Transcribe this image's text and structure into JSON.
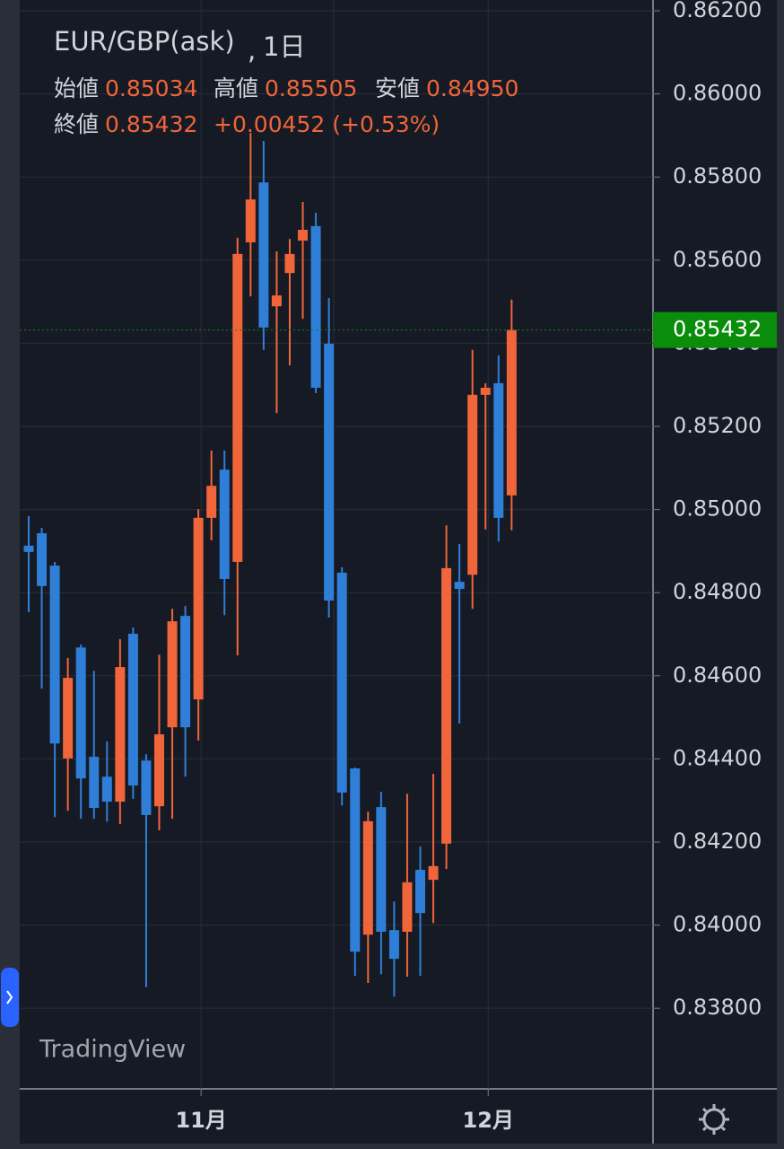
{
  "chart_data": {
    "type": "candlestick",
    "title": "EUR/GBP(ask)",
    "interval": "1日",
    "legend": [
      {
        "label": "始値",
        "value": "0.85034"
      },
      {
        "label": "高値",
        "value": "0.85505"
      },
      {
        "label": "安値",
        "value": "0.84950"
      },
      {
        "label": "終値",
        "value": "0.85432"
      }
    ],
    "change": "+0.00452 (+0.53%)",
    "last_price": 0.85432,
    "watermark": "TradingView",
    "up_color": "#f0653a",
    "down_color": "#2f7fd8",
    "last_price_color": "#0a8d0a",
    "grid": true,
    "ylim": [
      0.83606,
      0.86226
    ],
    "yticks": [
      {
        "value": 0.862,
        "label": "0.86200"
      },
      {
        "value": 0.86,
        "label": "0.86000"
      },
      {
        "value": 0.858,
        "label": "0.85800"
      },
      {
        "value": 0.856,
        "label": "0.85600"
      },
      {
        "value": 0.854,
        "label": "0.85400"
      },
      {
        "value": 0.852,
        "label": "0.85200"
      },
      {
        "value": 0.85,
        "label": "0.85000"
      },
      {
        "value": 0.848,
        "label": "0.84800"
      },
      {
        "value": 0.846,
        "label": "0.84600"
      },
      {
        "value": 0.844,
        "label": "0.84400"
      },
      {
        "value": 0.842,
        "label": "0.84200"
      },
      {
        "value": 0.84,
        "label": "0.84000"
      },
      {
        "value": 0.838,
        "label": "0.83800"
      }
    ],
    "categories": [
      null,
      null,
      null,
      null,
      null,
      null,
      null,
      null,
      null,
      null,
      null,
      null,
      null,
      "11月",
      null,
      null,
      null,
      null,
      null,
      null,
      null,
      null,
      null,
      null,
      null,
      null,
      null,
      null,
      null,
      null,
      null,
      null,
      null,
      null,
      null,
      "12月",
      null,
      null
    ],
    "open": [
      0.84913,
      0.84943,
      0.84865,
      0.84401,
      0.84668,
      0.84405,
      0.84357,
      0.84297,
      0.84701,
      0.84396,
      0.84286,
      0.84476,
      0.84744,
      0.84543,
      0.8498,
      0.85096,
      0.84874,
      0.85643,
      0.85787,
      0.85489,
      0.85569,
      0.85647,
      0.85682,
      0.85399,
      0.84848,
      0.84377,
      0.83977,
      0.84284,
      0.83988,
      0.83984,
      0.84133,
      0.84109,
      0.84196,
      0.84826,
      0.84843,
      0.85276,
      0.85304,
      0.85034
    ],
    "high": [
      0.84984,
      0.84956,
      0.84874,
      0.84643,
      0.84675,
      0.84612,
      0.84442,
      0.84688,
      0.84716,
      0.84411,
      0.84651,
      0.84761,
      0.84768,
      0.85001,
      0.85142,
      0.85142,
      0.85654,
      0.85906,
      0.85887,
      0.85621,
      0.85651,
      0.8574,
      0.85714,
      0.85509,
      0.84861,
      0.84379,
      0.84273,
      0.84321,
      0.84057,
      0.84316,
      0.84189,
      0.84364,
      0.84962,
      0.84917,
      0.85384,
      0.85304,
      0.85371,
      0.85505
    ],
    "low": [
      0.84753,
      0.84569,
      0.8426,
      0.84275,
      0.84256,
      0.84256,
      0.84249,
      0.84243,
      0.84304,
      0.83851,
      0.84228,
      0.84256,
      0.84357,
      0.84444,
      0.84926,
      0.84746,
      0.84649,
      0.85513,
      0.85384,
      0.85232,
      0.85347,
      0.85459,
      0.8528,
      0.8474,
      0.84288,
      0.83878,
      0.83861,
      0.83882,
      0.83828,
      0.83876,
      0.83878,
      0.84005,
      0.84135,
      0.84485,
      0.84761,
      0.84952,
      0.84923,
      0.8495
    ],
    "close": [
      0.84898,
      0.84816,
      0.84437,
      0.84595,
      0.84353,
      0.84282,
      0.84297,
      0.84621,
      0.84336,
      0.84265,
      0.84459,
      0.84731,
      0.84476,
      0.8498,
      0.85057,
      0.84833,
      0.85615,
      0.85746,
      0.85438,
      0.85515,
      0.85615,
      0.85673,
      0.85293,
      0.84781,
      0.84319,
      0.83936,
      0.8425,
      0.83984,
      0.83919,
      0.84103,
      0.84029,
      0.84142,
      0.84859,
      0.84809,
      0.85276,
      0.85293,
      0.8498,
      0.85432
    ]
  }
}
